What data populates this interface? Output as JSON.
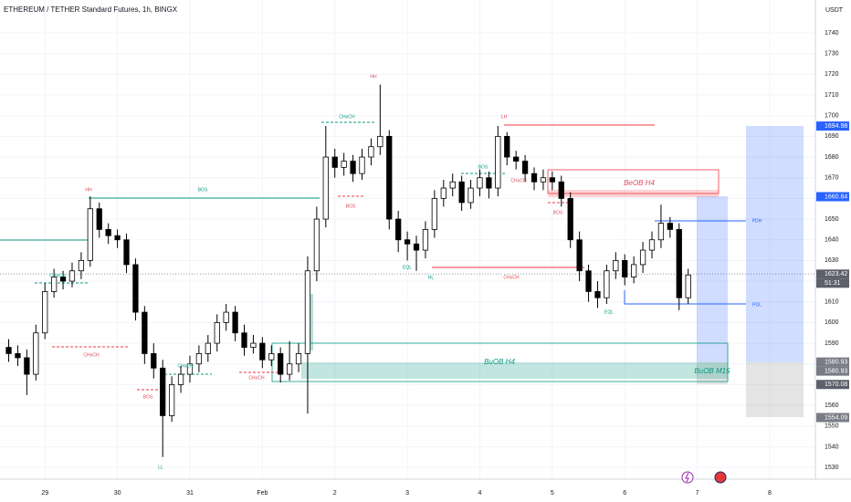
{
  "chart_data": {
    "type": "candlestick",
    "title": "ETHEREUM / TETHER Standard Futures, 1h, BINGX",
    "y_axis_label": "USDT",
    "countdown": "51:31",
    "xlim": [
      28.38,
      39.63
    ],
    "xticks": [
      29,
      30,
      31,
      {
        "value": 32,
        "label": "Feb"
      },
      {
        "value": 33,
        "label": "2"
      },
      {
        "value": 34,
        "label": "3"
      },
      {
        "value": 35,
        "label": "4"
      },
      {
        "value": 36,
        "label": "5"
      },
      {
        "value": 37,
        "label": "6"
      },
      {
        "value": 38,
        "label": "7"
      },
      {
        "value": 39,
        "label": "8"
      }
    ],
    "ylim": [
      1524.3,
      1755.9
    ],
    "yticks": [
      1530,
      1540,
      1550,
      1560,
      1570,
      1580,
      1590,
      1600,
      1610,
      1620,
      1630,
      1640,
      1650,
      1660,
      1670,
      1680,
      1690,
      1700,
      1710,
      1720,
      1730,
      1740
    ],
    "grid": true,
    "up_color": "#ffffff",
    "down_color": "#000000",
    "x": [
      28.5,
      28.625,
      28.75,
      28.875,
      29,
      29.125,
      29.25,
      29.375,
      29.5,
      29.625,
      29.75,
      29.875,
      30,
      30.125,
      30.25,
      30.375,
      30.5,
      30.625,
      30.75,
      30.875,
      31,
      31.125,
      31.25,
      31.375,
      31.5,
      31.625,
      31.75,
      31.875,
      32,
      32.125,
      32.25,
      32.375,
      32.5,
      32.625,
      32.75,
      32.875,
      33,
      33.125,
      33.25,
      33.375,
      33.5,
      33.625,
      33.75,
      33.875,
      34,
      34.125,
      34.25,
      34.375,
      34.5,
      34.625,
      34.75,
      34.875,
      35,
      35.125,
      35.25,
      35.375,
      35.5,
      35.625,
      35.75,
      35.875,
      36,
      36.125,
      36.25,
      36.375,
      36.5,
      36.625,
      36.75,
      36.875,
      37,
      37.125,
      37.25,
      37.375,
      37.5,
      37.625,
      37.75,
      37.875
    ],
    "open": [
      1588,
      1585,
      1583,
      1575,
      1595,
      1615,
      1622,
      1620,
      1625,
      1630,
      1655,
      1645,
      1642,
      1640,
      1628,
      1605,
      1585,
      1578,
      1555,
      1570,
      1575,
      1580,
      1585,
      1590,
      1600,
      1605,
      1595,
      1588,
      1590,
      1582,
      1585,
      1575,
      1580,
      1585,
      1625,
      1650,
      1680,
      1675,
      1678,
      1672,
      1680,
      1685,
      1690,
      1650,
      1640,
      1638,
      1635,
      1645,
      1660,
      1665,
      1668,
      1658,
      1665,
      1670,
      1665,
      1690,
      1680,
      1678,
      1672,
      1668,
      1670,
      1668,
      1660,
      1640,
      1625,
      1615,
      1612,
      1625,
      1630,
      1622,
      1628,
      1635,
      1640,
      1648,
      1645,
      1612
    ],
    "high": [
      1592,
      1589,
      1587,
      1599,
      1619,
      1626,
      1625,
      1629,
      1634,
      1661,
      1658,
      1648,
      1645,
      1643,
      1631,
      1608,
      1590,
      1582,
      1574,
      1579,
      1584,
      1589,
      1594,
      1604,
      1609,
      1608,
      1599,
      1594,
      1593,
      1589,
      1588,
      1591,
      1590,
      1632,
      1656,
      1695,
      1684,
      1682,
      1681,
      1684,
      1689,
      1715,
      1693,
      1654,
      1644,
      1642,
      1649,
      1664,
      1669,
      1672,
      1671,
      1669,
      1674,
      1673,
      1695,
      1692,
      1683,
      1681,
      1675,
      1674,
      1673,
      1671,
      1663,
      1644,
      1628,
      1620,
      1628,
      1634,
      1633,
      1632,
      1639,
      1644,
      1657,
      1651,
      1648,
      1626
    ],
    "low": [
      1581,
      1579,
      1565,
      1572,
      1592,
      1612,
      1616,
      1617,
      1621,
      1627,
      1641,
      1638,
      1636,
      1624,
      1601,
      1580,
      1573,
      1535,
      1552,
      1566,
      1571,
      1576,
      1581,
      1586,
      1596,
      1591,
      1584,
      1585,
      1578,
      1579,
      1571,
      1572,
      1576,
      1556,
      1620,
      1646,
      1670,
      1671,
      1668,
      1669,
      1676,
      1681,
      1645,
      1634,
      1630,
      1625,
      1631,
      1641,
      1656,
      1661,
      1654,
      1655,
      1661,
      1660,
      1661,
      1676,
      1674,
      1668,
      1664,
      1664,
      1664,
      1656,
      1636,
      1620,
      1610,
      1607,
      1609,
      1621,
      1618,
      1619,
      1624,
      1631,
      1636,
      1641,
      1606,
      1609
    ],
    "close": [
      1585,
      1583,
      1575,
      1595,
      1615,
      1622,
      1620,
      1625,
      1630,
      1655,
      1645,
      1642,
      1640,
      1628,
      1605,
      1585,
      1578,
      1555,
      1570,
      1575,
      1580,
      1585,
      1590,
      1600,
      1605,
      1595,
      1588,
      1590,
      1582,
      1585,
      1575,
      1580,
      1585,
      1625,
      1650,
      1680,
      1675,
      1678,
      1672,
      1680,
      1685,
      1690,
      1650,
      1640,
      1638,
      1635,
      1645,
      1660,
      1665,
      1668,
      1658,
      1665,
      1670,
      1665,
      1690,
      1680,
      1678,
      1672,
      1668,
      1670,
      1668,
      1660,
      1640,
      1625,
      1615,
      1612,
      1625,
      1630,
      1622,
      1628,
      1635,
      1640,
      1648,
      1645,
      1612,
      1623
    ],
    "price_labels": [
      {
        "value": 1694.98,
        "color": "#2962ff"
      },
      {
        "value": 1660.84,
        "color": "#2962ff"
      },
      {
        "value": 1623.42,
        "color": "#5d606b"
      },
      {
        "value": 1580.93,
        "color": "#787b86"
      },
      {
        "value": 1580.93,
        "color": "#787b86"
      },
      {
        "value": 1570.08,
        "color": "#5d606b"
      },
      {
        "value": 1554.09,
        "color": "#787b86"
      }
    ],
    "annotations": [
      {
        "text": "HH",
        "color": "#e04b5a"
      },
      {
        "text": "BOS",
        "color": "#089981"
      },
      {
        "text": "CHoCH",
        "color": "#089981"
      },
      {
        "text": "CHoCH",
        "color": "#e04b5a"
      },
      {
        "text": "BOS",
        "color": "#e04b5a"
      },
      {
        "text": "LL",
        "color": "#089981"
      },
      {
        "text": "CHoCH",
        "color": "#089981"
      },
      {
        "text": "CHoCH",
        "color": "#e04b5a"
      },
      {
        "text": "HH",
        "color": "#e04b5a"
      },
      {
        "text": "CHoCH",
        "color": "#089981"
      },
      {
        "text": "BOS",
        "color": "#e04b5a"
      },
      {
        "text": "EQL",
        "color": "#089981"
      },
      {
        "text": "HL",
        "color": "#089981"
      },
      {
        "text": "LH",
        "color": "#e04b5a"
      },
      {
        "text": "CHoCH",
        "color": "#e04b5a"
      },
      {
        "text": "BOS",
        "color": "#089981"
      },
      {
        "text": "CHoCH",
        "color": "#e04b5a"
      },
      {
        "text": "BOS",
        "color": "#e04b5a"
      },
      {
        "text": "EQL",
        "color": "#089981"
      },
      {
        "text": "PDH",
        "color": "#2962ff"
      },
      {
        "text": "PDL",
        "color": "#2962ff"
      },
      {
        "text": "BeOB H4",
        "color": "#e04b5a"
      },
      {
        "text": "BuOB H4",
        "color": "#089981"
      },
      {
        "text": "BuOB M15",
        "color": "#089981"
      }
    ]
  }
}
